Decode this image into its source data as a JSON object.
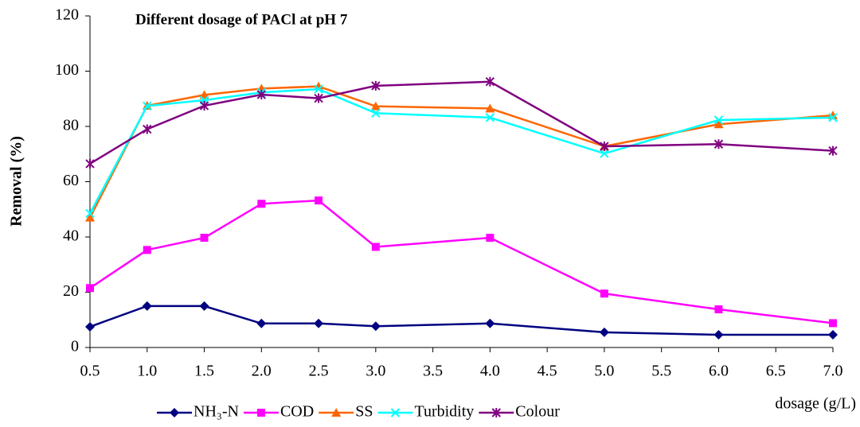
{
  "chart_data": {
    "type": "line",
    "title": "Different dosage of PACl at pH 7",
    "y_label": "Removal (%)",
    "x_label": "dosage (g/L)",
    "x": [
      0.5,
      1,
      1.5,
      2,
      2.5,
      3,
      4,
      5,
      6,
      7
    ],
    "series": [
      {
        "name": "NH₃-N",
        "color": "#000080",
        "marker": "diamond",
        "values": [
          7.5,
          15,
          15,
          8.7,
          8.7,
          7.7,
          8.7,
          5.5,
          4.6,
          4.6
        ]
      },
      {
        "name": "COD",
        "color": "#ff00ff",
        "marker": "square",
        "values": [
          21.5,
          35.3,
          39.7,
          52,
          53.2,
          36.4,
          39.7,
          19.5,
          13.8,
          8.8
        ]
      },
      {
        "name": "SS",
        "color": "#ff6600",
        "marker": "triangle",
        "values": [
          47,
          87.5,
          91.4,
          93.7,
          94.5,
          87.3,
          86.5,
          72.8,
          80.8,
          84
        ]
      },
      {
        "name": "Turbidity",
        "color": "#00ffff",
        "marker": "x",
        "values": [
          48.5,
          87.4,
          89.5,
          92.3,
          93.5,
          84.8,
          83.2,
          70.2,
          82.3,
          83.2
        ]
      },
      {
        "name": "Colour",
        "color": "#800080",
        "marker": "asterisk",
        "values": [
          66.5,
          79,
          87.5,
          91.5,
          90.2,
          94.7,
          96.2,
          72.8,
          73.6,
          71.2
        ]
      }
    ],
    "xlim": [
      0.5,
      7
    ],
    "xticks": [
      0.5,
      {
        "value": 1,
        "label": "1.0"
      },
      1.5,
      {
        "value": 2,
        "label": "2.0"
      },
      2.5,
      {
        "value": 3,
        "label": "3.0"
      },
      3.5,
      {
        "value": 4,
        "label": "4.0"
      },
      4.5,
      {
        "value": 5,
        "label": "5.0"
      },
      5.5,
      {
        "value": 6,
        "label": "6.0"
      },
      6.5,
      {
        "value": 7,
        "label": "7.0"
      }
    ],
    "ylim": [
      0,
      120
    ],
    "yticks": [
      0,
      20,
      40,
      60,
      80,
      100,
      120
    ],
    "grid": false,
    "legend": "bottom"
  }
}
